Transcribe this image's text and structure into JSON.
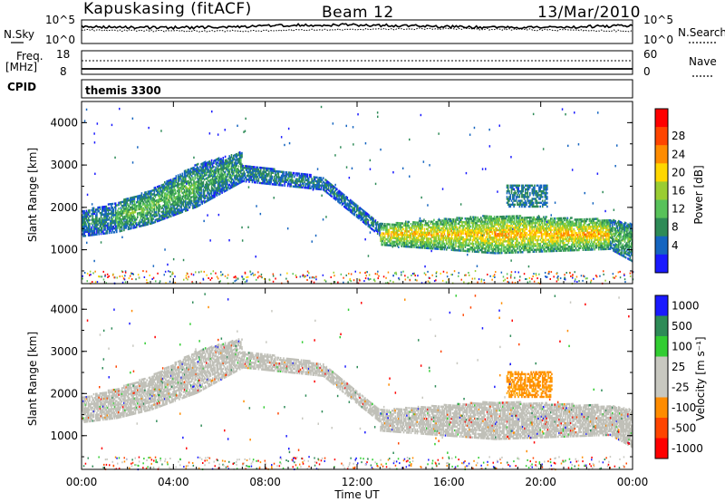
{
  "header": {
    "station": "Kapuskasing (fitACF)",
    "beam": "Beam 12",
    "date": "13/Mar/2010"
  },
  "top_panels": {
    "nsky_label": "N.Sky",
    "nsearch_label": "N.Search",
    "noise_ticks": [
      "10^5",
      "10^0"
    ],
    "freq_label": "Freq.",
    "freq_unit": "[MHz]",
    "freq_ticks": [
      "18",
      "8"
    ],
    "nave_label": "Nave",
    "nave_ticks": [
      "60",
      "0"
    ],
    "cpid_label": "CPID",
    "program": "themis 3300"
  },
  "colors": {
    "power_scale": [
      "#1a1aff",
      "#1565c0",
      "#2e8b57",
      "#58c25a",
      "#9acd32",
      "#ffd700",
      "#ff8c00",
      "#ff4500",
      "#ff0000"
    ],
    "velocity_scale": [
      "#ff0000",
      "#ff4500",
      "#ff8c00",
      "#c8c8c0",
      "#c8c8c0",
      "#32cd32",
      "#2e8b57",
      "#1a1aff"
    ],
    "ground_scatter": "#c0c0b8"
  },
  "chart_data": [
    {
      "type": "heatmap",
      "name": "power",
      "ylabel": "Slant Range [km]",
      "colorbar_label": "Power [dB]",
      "colorbar_ticks": [
        "28",
        "24",
        "20",
        "16",
        "12",
        "8",
        "4"
      ],
      "y_ticks": [
        "4000",
        "3000",
        "2000",
        "1000"
      ],
      "ylim": [
        200,
        4500
      ],
      "x_ticks": [
        "00:00",
        "04:00",
        "08:00",
        "12:00",
        "16:00",
        "20:00",
        "00:00"
      ],
      "xlim_hours": [
        0,
        24
      ],
      "bands": [
        {
          "t": [
            0.0,
            1.5
          ],
          "lo": [
            1300,
            1400
          ],
          "hi": [
            1900,
            2100
          ],
          "p": 6
        },
        {
          "t": [
            1.5,
            3.0
          ],
          "lo": [
            1400,
            1600
          ],
          "hi": [
            2100,
            2400
          ],
          "p": 10
        },
        {
          "t": [
            3.0,
            5.0
          ],
          "lo": [
            1600,
            2000
          ],
          "hi": [
            2400,
            3000
          ],
          "p": 10
        },
        {
          "t": [
            5.0,
            7.0
          ],
          "lo": [
            2000,
            2600
          ],
          "hi": [
            3000,
            3300
          ],
          "p": 8
        },
        {
          "t": [
            7.0,
            10.5
          ],
          "lo": [
            2600,
            2400
          ],
          "hi": [
            3000,
            2700
          ],
          "p": 6
        },
        {
          "t": [
            10.5,
            13.0
          ],
          "lo": [
            2400,
            1300
          ],
          "hi": [
            2700,
            1600
          ],
          "p": 6
        },
        {
          "t": [
            13.0,
            18.0
          ],
          "lo": [
            1100,
            900
          ],
          "hi": [
            1600,
            1800
          ],
          "p": 17
        },
        {
          "t": [
            18.0,
            23.0
          ],
          "lo": [
            900,
            1000
          ],
          "hi": [
            1800,
            1700
          ],
          "p": 18
        },
        {
          "t": [
            23.0,
            24.0
          ],
          "lo": [
            1000,
            700
          ],
          "hi": [
            1700,
            1600
          ],
          "p": 10
        }
      ]
    },
    {
      "type": "heatmap",
      "name": "velocity",
      "ylabel": "Slant Range [km]",
      "colorbar_label": "Velocity [m s⁻¹]",
      "colorbar_ticks": [
        "1000",
        "500",
        "100",
        "25",
        "-25",
        "-100",
        "-500",
        "-1000"
      ],
      "y_ticks": [
        "4000",
        "3000",
        "2000",
        "1000"
      ],
      "ylim": [
        200,
        4500
      ],
      "x_ticks": [
        "00:00",
        "04:00",
        "08:00",
        "12:00",
        "16:00",
        "20:00",
        "00:00"
      ],
      "xlabel": "Time UT",
      "xlim_hours": [
        0,
        24
      ],
      "bands": [
        {
          "t": [
            0.0,
            1.5
          ],
          "lo": [
            1300,
            1400
          ],
          "hi": [
            1900,
            2100
          ],
          "v": 0
        },
        {
          "t": [
            1.5,
            3.0
          ],
          "lo": [
            1400,
            1600
          ],
          "hi": [
            2100,
            2400
          ],
          "v": 0
        },
        {
          "t": [
            3.0,
            5.0
          ],
          "lo": [
            1600,
            2000
          ],
          "hi": [
            2400,
            3000
          ],
          "v": 0
        },
        {
          "t": [
            5.0,
            7.0
          ],
          "lo": [
            2000,
            2600
          ],
          "hi": [
            3000,
            3300
          ],
          "v": 0
        },
        {
          "t": [
            7.0,
            10.5
          ],
          "lo": [
            2600,
            2400
          ],
          "hi": [
            3000,
            2700
          ],
          "v": 0
        },
        {
          "t": [
            10.5,
            13.0
          ],
          "lo": [
            2400,
            1300
          ],
          "hi": [
            2700,
            1600
          ],
          "v": 0
        },
        {
          "t": [
            13.0,
            18.0
          ],
          "lo": [
            1100,
            900
          ],
          "hi": [
            1600,
            1800
          ],
          "v": 0
        },
        {
          "t": [
            18.0,
            23.0
          ],
          "lo": [
            900,
            1000
          ],
          "hi": [
            1800,
            1700
          ],
          "v": 0
        },
        {
          "t": [
            23.0,
            24.0
          ],
          "lo": [
            1000,
            700
          ],
          "hi": [
            1700,
            1600
          ],
          "v": 0
        }
      ],
      "ionospheric_patch": {
        "t": [
          18.5,
          20.5
        ],
        "range": [
          1900,
          2500
        ],
        "v": -200
      }
    }
  ]
}
